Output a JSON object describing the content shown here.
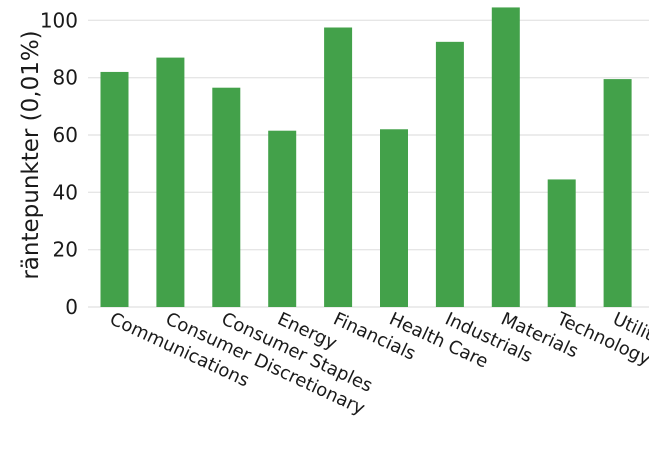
{
  "chart_data": {
    "type": "bar",
    "title": "",
    "xlabel": "",
    "ylabel": "räntepunkter (0,01%)",
    "ylim": [
      0,
      105
    ],
    "yticks": [
      0,
      20,
      40,
      60,
      80,
      100
    ],
    "grid": true,
    "bar_color": "#43A14A",
    "grid_color": "#e6e6e6",
    "text_color": "#1a1a1a",
    "categories": [
      "Communications",
      "Consumer Discretionary",
      "Consumer Staples",
      "Energy",
      "Financials",
      "Health Care",
      "Industrials",
      "Materials",
      "Technology",
      "Utilities"
    ],
    "values": [
      82,
      87,
      76.5,
      61.5,
      97.5,
      62,
      92.5,
      104.5,
      44.5,
      79.5
    ]
  }
}
